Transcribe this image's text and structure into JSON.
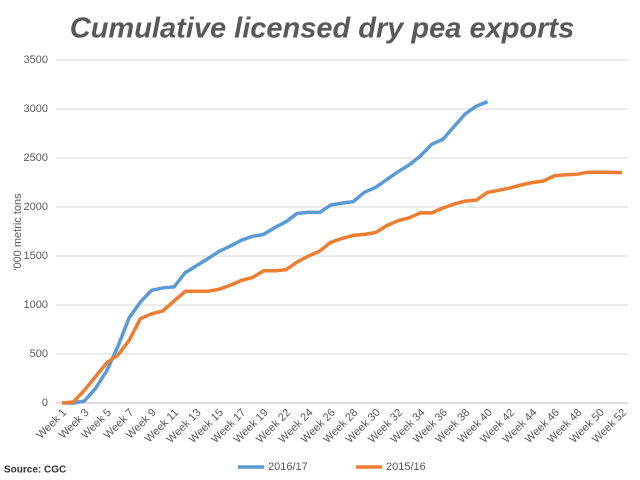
{
  "chart_data": {
    "type": "line",
    "title": "Cumulative licensed dry pea exports",
    "y_label": "'000 metric tons",
    "source": "Source: CGC",
    "categories": [
      "Week 1",
      null,
      "Week 3",
      null,
      "Week 5",
      null,
      "Week 7",
      null,
      "Week 9",
      null,
      "Week 11",
      null,
      "Week 13",
      null,
      "Week 15",
      null,
      "Week 17",
      null,
      "Week 19",
      null,
      "Week 22",
      null,
      "Week 24",
      null,
      "Week 26",
      null,
      "Week 28",
      null,
      "Week 30",
      null,
      "Week 32",
      null,
      "Week 34",
      null,
      "Week 36",
      null,
      "Week 38",
      null,
      "Week 40",
      null,
      "Week 42",
      null,
      "Week 44",
      null,
      "Week 46",
      null,
      "Week 48",
      null,
      "Week 50",
      null,
      "Week 52"
    ],
    "series": [
      {
        "name": "2016/17",
        "color": "#5b9bd5",
        "values": [
          0,
          0,
          20,
          150,
          330,
          580,
          870,
          1030,
          1150,
          1175,
          1185,
          1330,
          1400,
          1470,
          1545,
          1600,
          1660,
          1700,
          1720,
          1790,
          1850,
          1935,
          1945,
          1945,
          2020,
          2040,
          2055,
          2150,
          2200,
          2280,
          2360,
          2430,
          2520,
          2640,
          2690,
          2820,
          2950,
          3030,
          3075,
          null,
          null,
          null,
          null,
          null,
          null,
          null,
          null,
          null,
          null,
          null,
          null
        ]
      },
      {
        "name": "2015/16",
        "color": "#ed7d31",
        "values": [
          0,
          10,
          130,
          270,
          410,
          490,
          640,
          860,
          910,
          940,
          1040,
          1140,
          1140,
          1140,
          1160,
          1200,
          1250,
          1280,
          1350,
          1350,
          1360,
          1440,
          1500,
          1550,
          1640,
          1680,
          1710,
          1720,
          1740,
          1810,
          1860,
          1890,
          1940,
          1940,
          1990,
          2030,
          2060,
          2070,
          2150,
          2170,
          2195,
          2225,
          2250,
          2265,
          2320,
          2330,
          2335,
          2355,
          2355,
          2355,
          2350
        ]
      }
    ],
    "ylim": [
      0,
      3500
    ],
    "yticks": [
      0,
      500,
      1000,
      1500,
      2000,
      2500,
      3000,
      3500
    ],
    "grid": true
  }
}
